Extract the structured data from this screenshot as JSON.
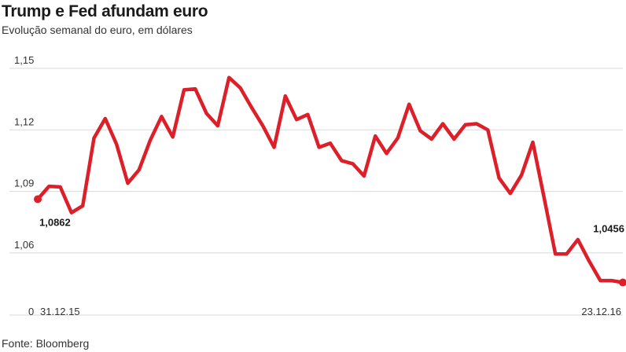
{
  "title": "Trump e Fed afundam euro",
  "subtitle": "Evolução semanal do euro, em dólares",
  "source": "Fonte: Bloomberg",
  "colors": {
    "line": "#dd1f2a",
    "grid": "#d9d9d9",
    "text": "#1a1a1a"
  },
  "chart_data": {
    "type": "line",
    "title": "Trump e Fed afundam euro",
    "subtitle": "Evolução semanal do euro, em dólares",
    "ylim": [
      1.03,
      1.15
    ],
    "y_ticks": [
      "1,15",
      "1,12",
      "1,09",
      "1,06"
    ],
    "y_tick_values": [
      1.15,
      1.12,
      1.09,
      1.06
    ],
    "y_origin_label": "0",
    "x_labels": {
      "start": "31.12.15",
      "end": "23.12.16"
    },
    "grid": true,
    "data_labels": [
      {
        "index": 0,
        "text": "1,0862"
      },
      {
        "index": 52,
        "text": "1,0456"
      }
    ],
    "series": [
      {
        "values": [
          1.0862,
          1.0925,
          1.0922,
          1.0796,
          1.083,
          1.116,
          1.1255,
          1.113,
          1.094,
          1.1005,
          1.115,
          1.1265,
          1.1165,
          1.1395,
          1.14,
          1.128,
          1.122,
          1.1455,
          1.1405,
          1.131,
          1.122,
          1.1115,
          1.1365,
          1.125,
          1.1275,
          1.1115,
          1.1135,
          1.105,
          1.1035,
          1.0975,
          1.117,
          1.1085,
          1.116,
          1.1325,
          1.1195,
          1.1155,
          1.123,
          1.1155,
          1.1225,
          1.123,
          1.12,
          1.0965,
          1.089,
          1.098,
          1.114,
          1.087,
          1.0595,
          1.0595,
          1.0665,
          1.056,
          1.0465,
          1.0465,
          1.0456
        ]
      }
    ]
  }
}
